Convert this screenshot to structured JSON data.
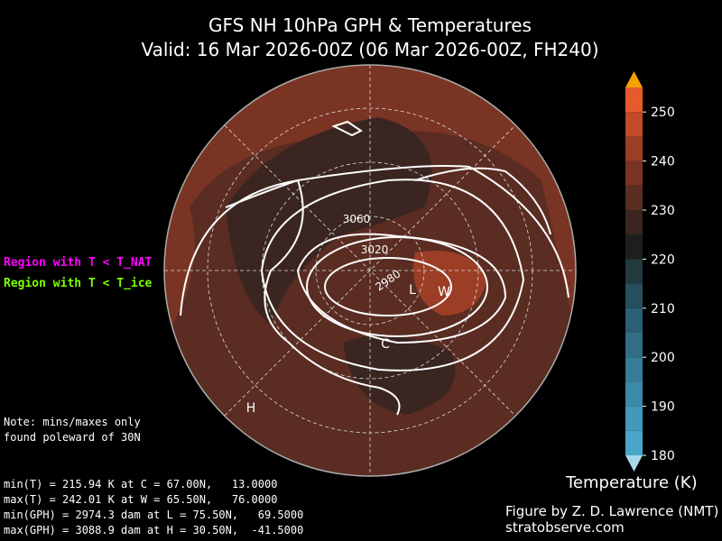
{
  "header": {
    "title": "GFS NH 10hPa GPH & Temperatures",
    "subtitle": "Valid: 16 Mar 2026-00Z  (06 Mar 2026-00Z, FH240)"
  },
  "legend": {
    "items": [
      {
        "label": "Region with T < T_NAT",
        "color": "#ff00ff"
      },
      {
        "label": "Region with T < T_ice",
        "color": "#7fff00"
      }
    ]
  },
  "note": [
    "Note: mins/maxes only",
    "found poleward of 30N"
  ],
  "stats": [
    "min(T) = 215.94 K at C = 67.00N,   13.0000",
    "max(T) = 242.01 K at W = 65.50N,   76.0000",
    "min(GPH) = 2974.3 dam at L = 75.50N,   69.5000",
    "max(GPH) = 3088.9 dam at H = 30.50N,  -41.5000"
  ],
  "map": {
    "contour_labels": [
      "3060",
      "3020",
      "2980"
    ],
    "markers": [
      "L",
      "W",
      "C",
      "H"
    ]
  },
  "colorbar": {
    "label": "Temperature (K)",
    "lim": [
      180,
      255
    ],
    "ticks": [
      180,
      190,
      200,
      210,
      220,
      230,
      240,
      250
    ],
    "levels": [
      180,
      185,
      190,
      195,
      200,
      205,
      210,
      215,
      220,
      225,
      230,
      235,
      240,
      245,
      250,
      255
    ],
    "colors": [
      "#4aa6c9",
      "#4399bb",
      "#3c8aa9",
      "#377c98",
      "#316e86",
      "#2b5f73",
      "#264f5e",
      "#21393f",
      "#1e1e1e",
      "#3a2520",
      "#5a2c22",
      "#7a3424",
      "#9c3d26",
      "#c24a2a",
      "#e75a2c"
    ],
    "extend_colors": [
      "#a8d8e8",
      "#f5a000"
    ]
  },
  "credit": [
    "Figure by Z. D. Lawrence (NMT)",
    "stratobserve.com"
  ]
}
